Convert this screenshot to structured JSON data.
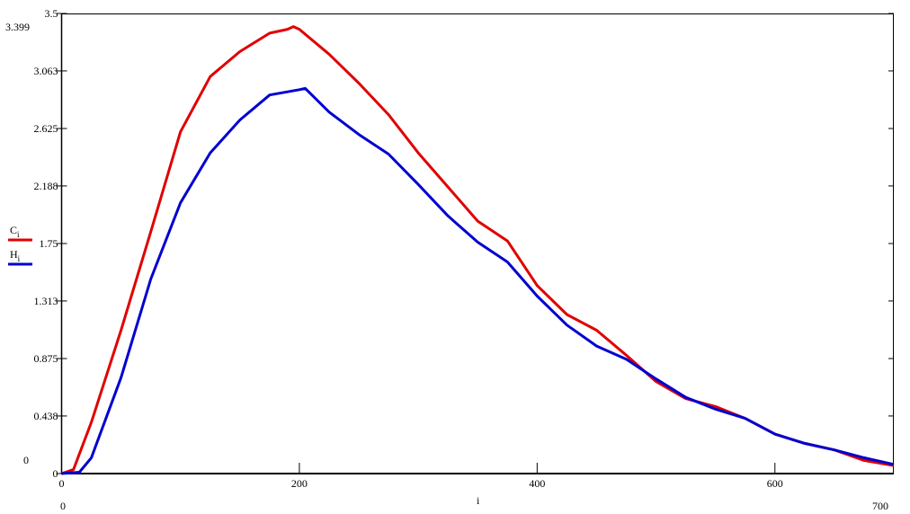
{
  "chart_data": {
    "type": "line",
    "title": "",
    "xlabel": "i",
    "xlim": [
      0,
      700
    ],
    "ylim": [
      0,
      3.5
    ],
    "x_ticks": [
      "0",
      "200",
      "400",
      "600"
    ],
    "y_ticks": [
      "0",
      "0.438",
      "0.875",
      "1.313",
      "1.75",
      "2.188",
      "2.625",
      "3.063",
      "3.5"
    ],
    "x_range_labels": {
      "min": "0",
      "max": "700"
    },
    "y_range_labels": {
      "min": "0",
      "max": "3.399"
    },
    "grid": false,
    "legend": "left",
    "series": [
      {
        "name": "C",
        "subscript": "i",
        "color": "#e00000",
        "x": [
          0,
          10,
          25,
          50,
          75,
          100,
          125,
          150,
          175,
          190,
          195,
          200,
          225,
          250,
          275,
          300,
          325,
          350,
          375,
          400,
          425,
          450,
          475,
          500,
          525,
          550,
          575,
          600,
          625,
          650,
          675,
          700
        ],
        "y": [
          0,
          0.03,
          0.39,
          1.09,
          1.84,
          2.6,
          3.02,
          3.21,
          3.35,
          3.38,
          3.4,
          3.38,
          3.19,
          2.97,
          2.73,
          2.44,
          2.18,
          1.92,
          1.77,
          1.43,
          1.21,
          1.09,
          0.9,
          0.7,
          0.57,
          0.51,
          0.42,
          0.3,
          0.23,
          0.18,
          0.1,
          0.06
        ]
      },
      {
        "name": "H",
        "subscript": "i",
        "color": "#0000d0",
        "x": [
          0,
          15,
          25,
          50,
          75,
          100,
          125,
          150,
          175,
          200,
          205,
          225,
          250,
          275,
          300,
          325,
          350,
          375,
          400,
          425,
          450,
          475,
          500,
          525,
          550,
          575,
          600,
          625,
          650,
          675,
          700
        ],
        "y": [
          0,
          0.01,
          0.12,
          0.73,
          1.48,
          2.06,
          2.44,
          2.69,
          2.88,
          2.92,
          2.93,
          2.75,
          2.58,
          2.43,
          2.2,
          1.96,
          1.76,
          1.61,
          1.35,
          1.13,
          0.97,
          0.87,
          0.72,
          0.58,
          0.49,
          0.42,
          0.3,
          0.23,
          0.18,
          0.12,
          0.07
        ]
      }
    ]
  }
}
